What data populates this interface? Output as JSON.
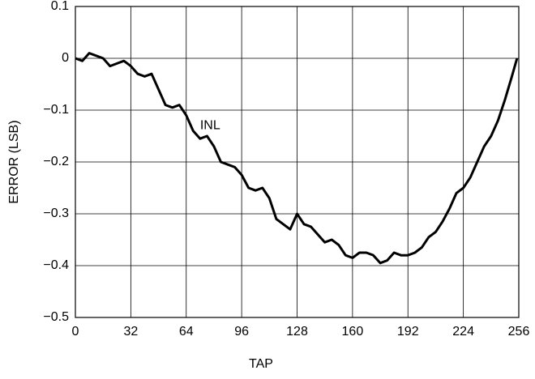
{
  "chart_data": {
    "type": "line",
    "x_label": "TAP",
    "y_label": "ERROR (LSB)",
    "annotation": "INL",
    "x": [
      0,
      4,
      8,
      12,
      16,
      20,
      24,
      28,
      32,
      36,
      40,
      44,
      48,
      52,
      56,
      60,
      64,
      68,
      72,
      76,
      80,
      84,
      88,
      92,
      96,
      100,
      104,
      108,
      112,
      116,
      120,
      124,
      128,
      132,
      136,
      140,
      144,
      148,
      152,
      156,
      160,
      164,
      168,
      172,
      176,
      180,
      184,
      188,
      192,
      196,
      200,
      204,
      208,
      212,
      216,
      220,
      224,
      228,
      232,
      236,
      240,
      244,
      248,
      252,
      255
    ],
    "series": [
      {
        "color": "#000000",
        "values": [
          0,
          -0.005,
          0.01,
          0.005,
          0,
          -0.015,
          -0.01,
          -0.005,
          -0.015,
          -0.03,
          -0.035,
          -0.03,
          -0.06,
          -0.09,
          -0.095,
          -0.09,
          -0.11,
          -0.14,
          -0.155,
          -0.15,
          -0.17,
          -0.2,
          -0.205,
          -0.21,
          -0.225,
          -0.25,
          -0.255,
          -0.25,
          -0.27,
          -0.31,
          -0.32,
          -0.33,
          -0.3,
          -0.32,
          -0.325,
          -0.34,
          -0.355,
          -0.35,
          -0.36,
          -0.38,
          -0.385,
          -0.375,
          -0.375,
          -0.38,
          -0.395,
          -0.39,
          -0.375,
          -0.38,
          -0.38,
          -0.375,
          -0.365,
          -0.345,
          -0.335,
          -0.315,
          -0.29,
          -0.26,
          -0.25,
          -0.23,
          -0.2,
          -0.17,
          -0.15,
          -0.12,
          -0.08,
          -0.035,
          0
        ]
      }
    ],
    "xlim": [
      0,
      256
    ],
    "xticks": [
      0,
      32,
      64,
      96,
      128,
      160,
      192,
      224,
      256
    ],
    "ylim": [
      -0.5,
      0.1
    ],
    "yticks": [
      {
        "value": -0.5,
        "label": "−0.5"
      },
      {
        "value": -0.4,
        "label": "−0.4"
      },
      {
        "value": -0.3,
        "label": "−0.3"
      },
      {
        "value": -0.2,
        "label": "−0.2"
      },
      {
        "value": -0.1,
        "label": "−0.1"
      },
      0,
      0.1
    ],
    "grid": true
  }
}
